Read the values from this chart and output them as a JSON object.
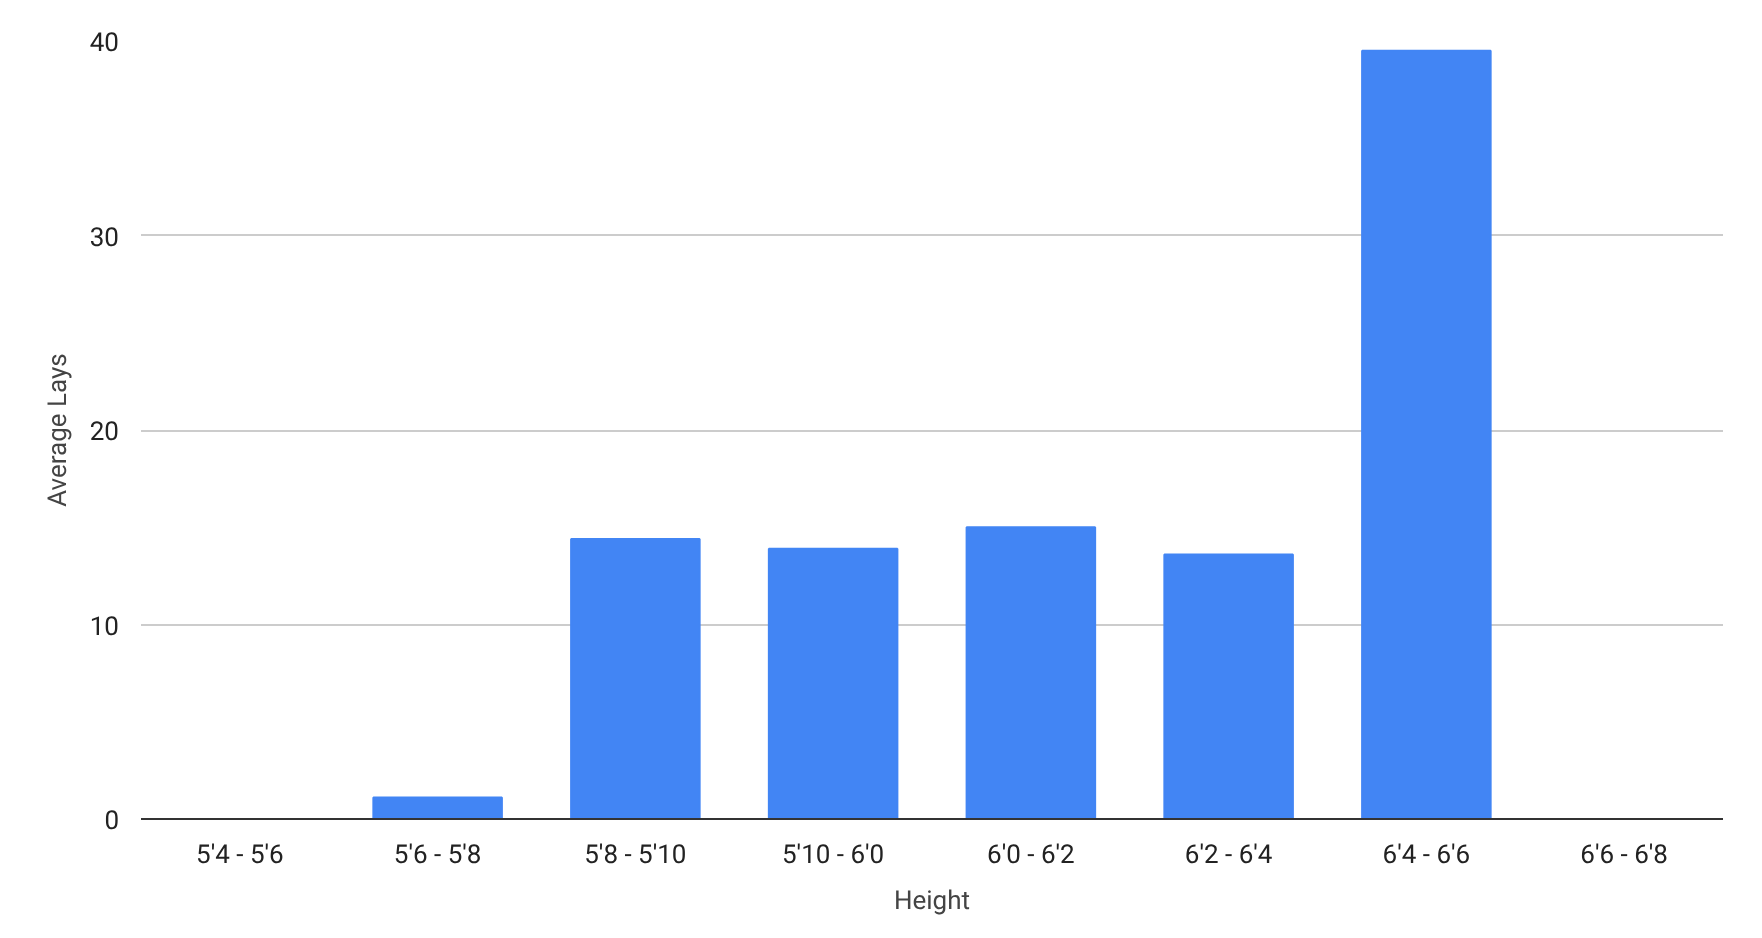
{
  "chart_data": {
    "type": "bar",
    "xlabel": "Height",
    "ylabel": "Average Lays",
    "categories": [
      "5'4 - 5'6",
      "5'6 - 5'8",
      "5'8 - 5'10",
      "5'10 - 6'0",
      "6'0 - 6'2",
      "6'2 - 6'4",
      "6'4 - 6'6",
      "6'6 - 6'8"
    ],
    "values": [
      0,
      1.1,
      14.4,
      13.9,
      15.0,
      13.6,
      39.5,
      0
    ],
    "color": "#4285f4",
    "ylim": [
      0,
      40
    ],
    "yticks": [
      0,
      10,
      20,
      30,
      40
    ],
    "grid": "y"
  }
}
